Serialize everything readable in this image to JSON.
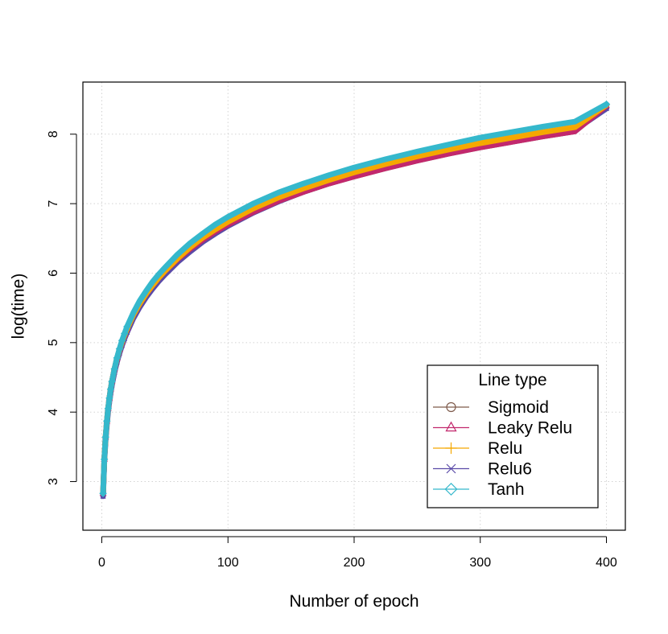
{
  "chart_data": {
    "type": "line",
    "xlabel": "Number of epoch",
    "ylabel": "log(time)",
    "xlim": [
      -15,
      415
    ],
    "ylim": [
      2.3,
      8.75
    ],
    "xticks": [
      0,
      100,
      200,
      300,
      400
    ],
    "yticks": [
      3,
      4,
      5,
      6,
      7,
      8
    ],
    "grid": true,
    "legend": {
      "title": "Line type",
      "position": "bottom-right",
      "entries": [
        "Sigmoid",
        "Leaky Relu",
        "Relu",
        "Relu6",
        "Tanh"
      ]
    },
    "x": [
      1,
      2,
      3,
      4,
      5,
      6,
      7,
      8,
      10,
      12,
      14,
      16,
      18,
      20,
      25,
      30,
      35,
      40,
      45,
      50,
      60,
      70,
      80,
      90,
      100,
      120,
      140,
      160,
      180,
      200,
      225,
      250,
      275,
      300,
      325,
      350,
      375,
      400
    ],
    "series": [
      {
        "name": "Sigmoid",
        "color": "#7e5a4b",
        "marker": "circle",
        "values": [
          2.83,
          3.32,
          3.64,
          3.87,
          4.05,
          4.2,
          4.33,
          4.44,
          4.62,
          4.77,
          4.9,
          5.01,
          5.11,
          5.2,
          5.4,
          5.56,
          5.7,
          5.82,
          5.93,
          6.03,
          6.2,
          6.35,
          6.48,
          6.6,
          6.7,
          6.88,
          7.04,
          7.17,
          7.29,
          7.39,
          7.51,
          7.62,
          7.72,
          7.81,
          7.89,
          7.97,
          8.04,
          8.41
        ]
      },
      {
        "name": "Leaky Relu",
        "color": "#c2286d",
        "marker": "triangle",
        "values": [
          2.83,
          3.32,
          3.64,
          3.87,
          4.05,
          4.2,
          4.33,
          4.44,
          4.62,
          4.77,
          4.9,
          5.01,
          5.11,
          5.2,
          5.4,
          5.56,
          5.7,
          5.82,
          5.93,
          6.03,
          6.2,
          6.35,
          6.48,
          6.6,
          6.7,
          6.88,
          7.04,
          7.17,
          7.29,
          7.39,
          7.51,
          7.62,
          7.72,
          7.81,
          7.89,
          7.97,
          8.04,
          8.41
        ]
      },
      {
        "name": "Relu",
        "color": "#f5a800",
        "marker": "plus",
        "values": [
          2.83,
          3.32,
          3.64,
          3.87,
          4.05,
          4.2,
          4.33,
          4.44,
          4.62,
          4.77,
          4.9,
          5.01,
          5.11,
          5.2,
          5.4,
          5.56,
          5.7,
          5.82,
          5.93,
          6.03,
          6.21,
          6.37,
          6.51,
          6.63,
          6.74,
          6.93,
          7.09,
          7.22,
          7.34,
          7.45,
          7.57,
          7.68,
          7.78,
          7.87,
          7.95,
          8.03,
          8.1,
          8.42
        ]
      },
      {
        "name": "Relu6",
        "color": "#5a4aa8",
        "marker": "cross",
        "values": [
          2.79,
          3.28,
          3.59,
          3.82,
          4.0,
          4.15,
          4.28,
          4.39,
          4.57,
          4.72,
          4.85,
          4.96,
          5.06,
          5.15,
          5.35,
          5.51,
          5.65,
          5.77,
          5.88,
          5.98,
          6.16,
          6.31,
          6.45,
          6.57,
          6.68,
          6.87,
          7.03,
          7.17,
          7.29,
          7.4,
          7.52,
          7.63,
          7.73,
          7.82,
          7.91,
          7.99,
          8.06,
          8.37
        ]
      },
      {
        "name": "Tanh",
        "color": "#35b8cc",
        "marker": "diamond",
        "values": [
          2.83,
          3.32,
          3.64,
          3.87,
          4.05,
          4.2,
          4.33,
          4.44,
          4.62,
          4.78,
          4.91,
          5.03,
          5.13,
          5.23,
          5.43,
          5.6,
          5.74,
          5.87,
          5.98,
          6.08,
          6.27,
          6.43,
          6.57,
          6.7,
          6.81,
          7.0,
          7.16,
          7.29,
          7.41,
          7.52,
          7.64,
          7.75,
          7.85,
          7.95,
          8.03,
          8.11,
          8.18,
          8.43
        ]
      }
    ]
  }
}
